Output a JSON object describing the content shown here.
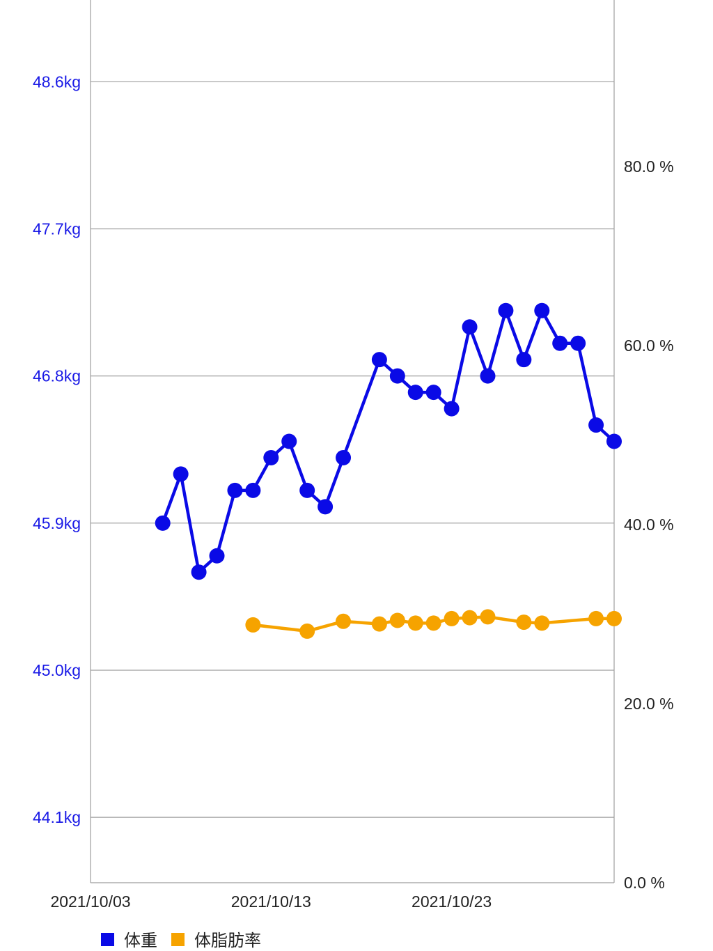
{
  "chart_data": {
    "type": "line",
    "title": "",
    "xlabel": "",
    "ylabel": "",
    "x_tick_labels": [
      "2021/10/03",
      "2021/10/13",
      "2021/10/23"
    ],
    "x_tick_dates": [
      "2021-10-03",
      "2021-10-13",
      "2021-10-23"
    ],
    "x_range": [
      "2021-10-03",
      "2021-11-01"
    ],
    "y_left": {
      "unit": "kg",
      "range": [
        43.7,
        49.1
      ],
      "ticks": [
        44.1,
        45.0,
        45.9,
        46.8,
        47.7,
        48.6
      ],
      "tick_labels": [
        "44.1kg",
        "45.0kg",
        "45.9kg",
        "46.8kg",
        "47.7kg",
        "48.6kg"
      ]
    },
    "y_right": {
      "unit": "%",
      "range": [
        0,
        98.6
      ],
      "ticks": [
        0,
        20,
        40,
        60,
        80
      ],
      "tick_labels": [
        "0.0 %",
        "20.0 %",
        "40.0 %",
        "60.0 %",
        "80.0 %"
      ]
    },
    "grid": true,
    "legend_position": "bottom-left",
    "series": [
      {
        "name": "体重",
        "axis": "left",
        "color": "#0a0ae6",
        "points": [
          {
            "x": "2021-10-07",
            "y": 45.9
          },
          {
            "x": "2021-10-08",
            "y": 46.2
          },
          {
            "x": "2021-10-09",
            "y": 45.6
          },
          {
            "x": "2021-10-10",
            "y": 45.7
          },
          {
            "x": "2021-10-11",
            "y": 46.1
          },
          {
            "x": "2021-10-12",
            "y": 46.1
          },
          {
            "x": "2021-10-13",
            "y": 46.3
          },
          {
            "x": "2021-10-14",
            "y": 46.4
          },
          {
            "x": "2021-10-15",
            "y": 46.1
          },
          {
            "x": "2021-10-16",
            "y": 46.0
          },
          {
            "x": "2021-10-17",
            "y": 46.3
          },
          {
            "x": "2021-10-19",
            "y": 46.9
          },
          {
            "x": "2021-10-20",
            "y": 46.8
          },
          {
            "x": "2021-10-21",
            "y": 46.7
          },
          {
            "x": "2021-10-22",
            "y": 46.7
          },
          {
            "x": "2021-10-23",
            "y": 46.6
          },
          {
            "x": "2021-10-24",
            "y": 47.1
          },
          {
            "x": "2021-10-25",
            "y": 46.8
          },
          {
            "x": "2021-10-26",
            "y": 47.2
          },
          {
            "x": "2021-10-27",
            "y": 46.9
          },
          {
            "x": "2021-10-28",
            "y": 47.2
          },
          {
            "x": "2021-10-29",
            "y": 47.0
          },
          {
            "x": "2021-10-30",
            "y": 47.0
          },
          {
            "x": "2021-10-31",
            "y": 46.5
          },
          {
            "x": "2021-11-01",
            "y": 46.4
          }
        ]
      },
      {
        "name": "体脂肪率",
        "axis": "right",
        "color": "#f6a300",
        "points": [
          {
            "x": "2021-10-12",
            "y": 28.8
          },
          {
            "x": "2021-10-15",
            "y": 28.1
          },
          {
            "x": "2021-10-17",
            "y": 29.2
          },
          {
            "x": "2021-10-19",
            "y": 28.9
          },
          {
            "x": "2021-10-20",
            "y": 29.3
          },
          {
            "x": "2021-10-21",
            "y": 29.0
          },
          {
            "x": "2021-10-22",
            "y": 29.0
          },
          {
            "x": "2021-10-23",
            "y": 29.5
          },
          {
            "x": "2021-10-24",
            "y": 29.6
          },
          {
            "x": "2021-10-25",
            "y": 29.7
          },
          {
            "x": "2021-10-27",
            "y": 29.1
          },
          {
            "x": "2021-10-28",
            "y": 29.0
          },
          {
            "x": "2021-10-31",
            "y": 29.5
          },
          {
            "x": "2021-11-01",
            "y": 29.5
          }
        ]
      }
    ]
  }
}
